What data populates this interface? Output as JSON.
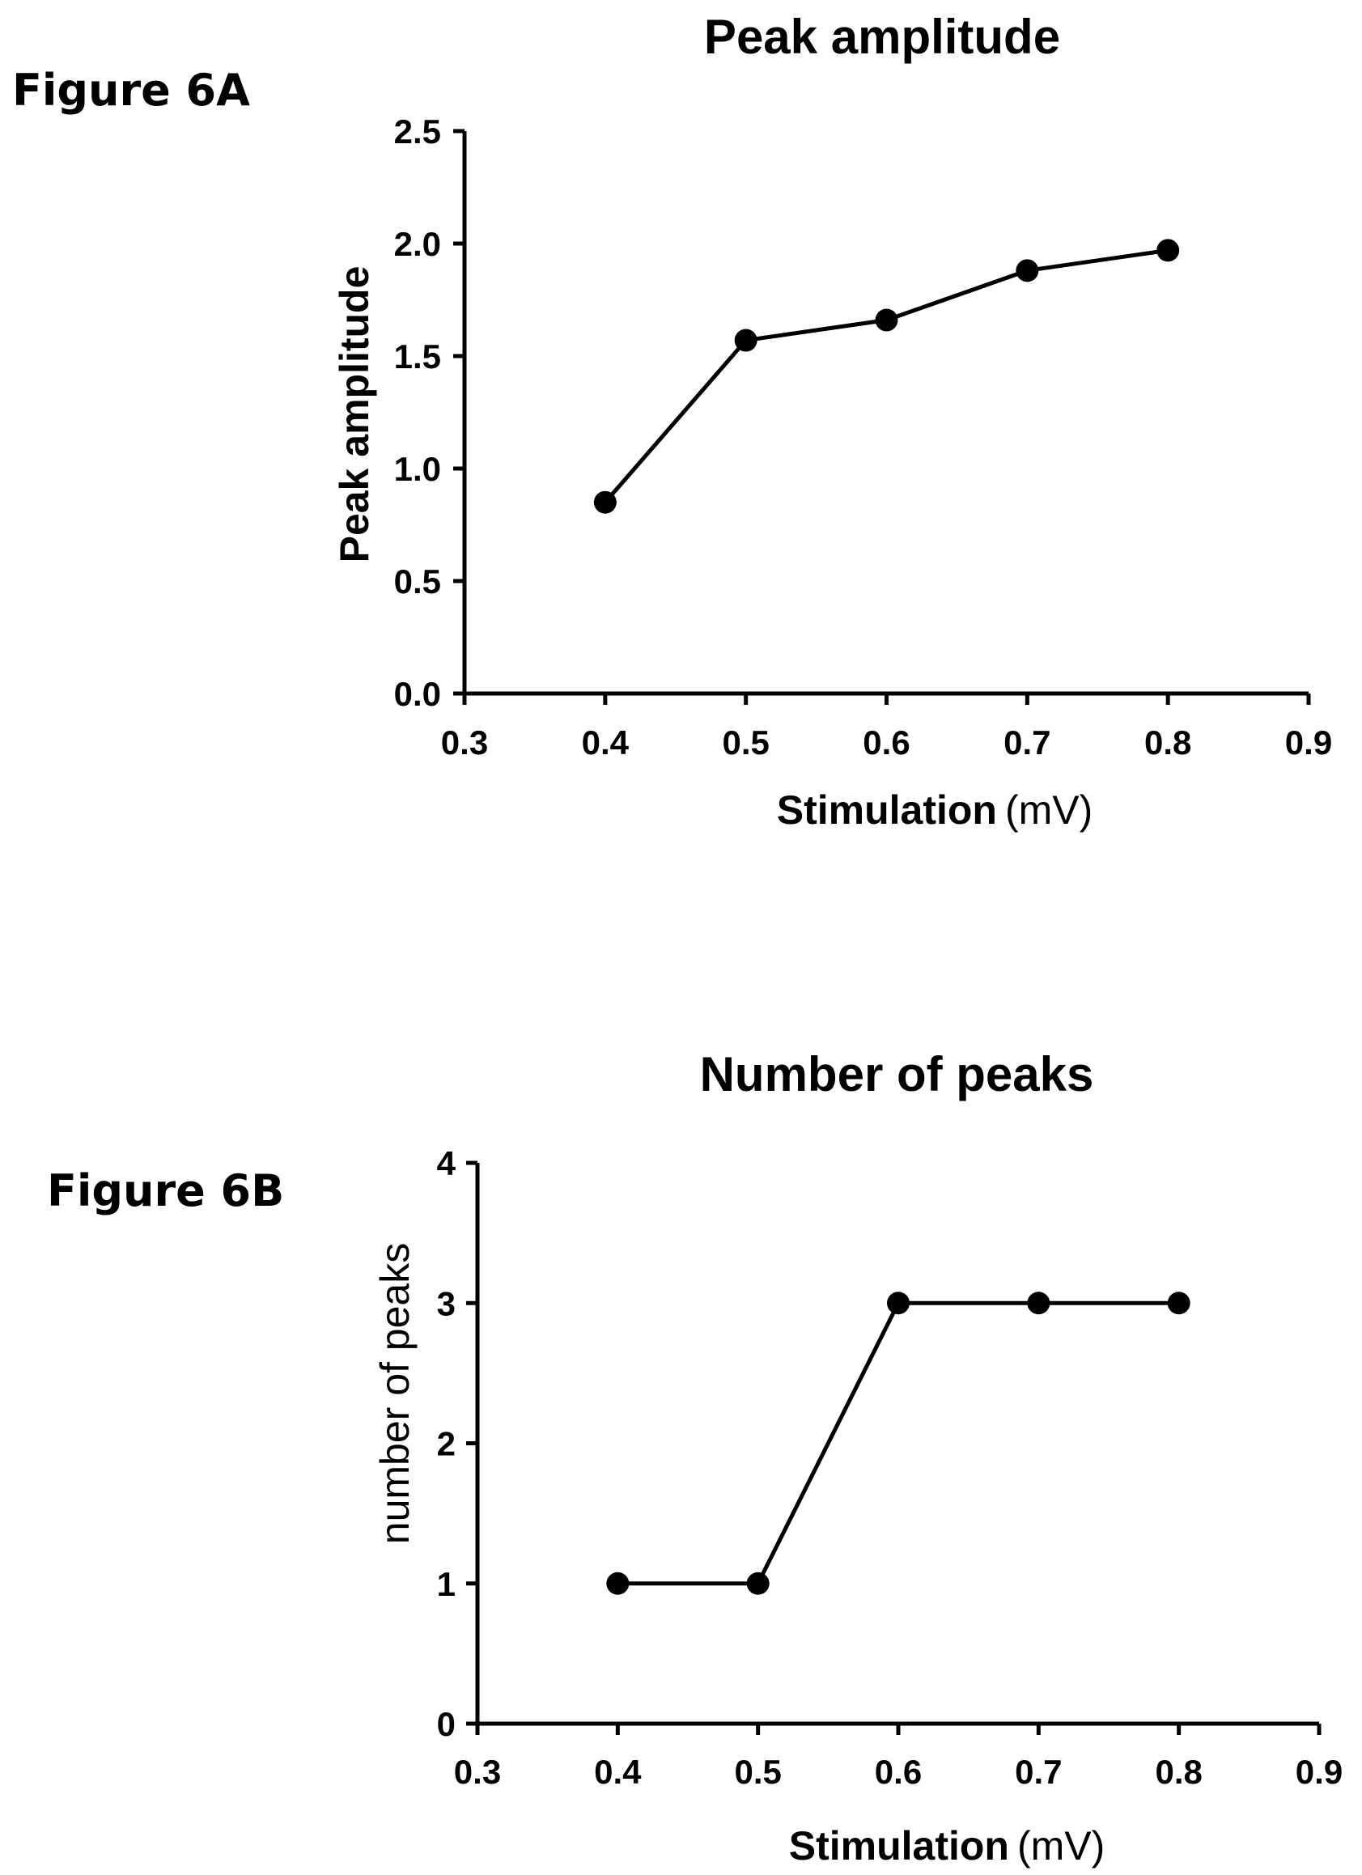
{
  "figure_labels": {
    "a": "Figure 6A",
    "b": "Figure 6B"
  },
  "chart_data": [
    {
      "type": "line",
      "title": "Peak amplitude",
      "xlabel": "Stimulation",
      "xlabel_unit": "(mV)",
      "ylabel": "Peak amplitude",
      "xlim": [
        0.3,
        0.9
      ],
      "ylim": [
        0,
        2.5
      ],
      "x_ticks": [
        "0.3",
        "0.4",
        "0.5",
        "0.6",
        "0.7",
        "0.8",
        "0.9"
      ],
      "y_ticks": [
        "0.0",
        "0.5",
        "1.0",
        "1.5",
        "2.0",
        "2.5"
      ],
      "x": [
        0.4,
        0.5,
        0.6,
        0.7,
        0.8
      ],
      "y": [
        0.85,
        1.57,
        1.66,
        1.88,
        1.97
      ],
      "grid": false,
      "color": "#000000"
    },
    {
      "type": "line",
      "title": "Number of peaks",
      "xlabel": "Stimulation",
      "xlabel_unit": "(mV)",
      "ylabel": "number of peaks",
      "xlim": [
        0.3,
        0.9
      ],
      "ylim": [
        0,
        4
      ],
      "x_ticks": [
        "0.3",
        "0.4",
        "0.5",
        "0.6",
        "0.7",
        "0.8",
        "0.9"
      ],
      "y_ticks": [
        "0",
        "1",
        "2",
        "3",
        "4"
      ],
      "x": [
        0.4,
        0.5,
        0.6,
        0.7,
        0.8
      ],
      "y": [
        1,
        1,
        3,
        3,
        3
      ],
      "grid": false,
      "color": "#000000"
    }
  ]
}
